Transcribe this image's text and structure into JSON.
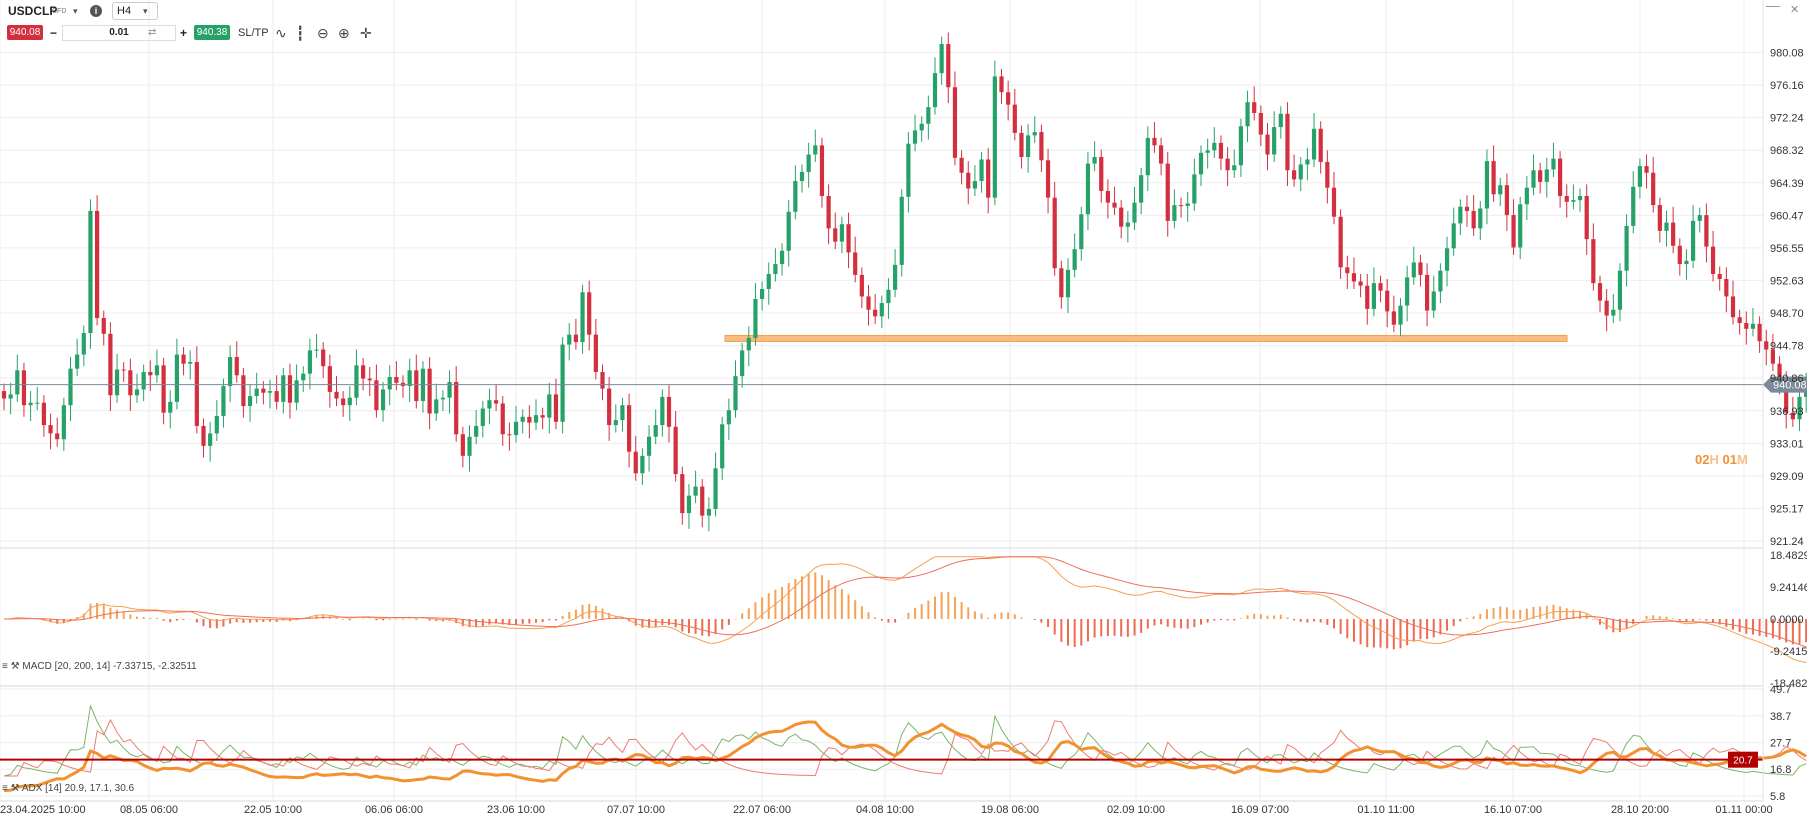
{
  "toolbar": {
    "symbol": "USDCLP",
    "instrument_type": "CFD",
    "timeframe": "H4",
    "sell_price": "940.08",
    "quantity": "0.01",
    "buy_price": "940.38",
    "sltp_label": "SL/TP",
    "icons": [
      "chevron-down-icon",
      "info-icon",
      "minus-icon",
      "plus-icon",
      "swap-icon",
      "line-chart-icon",
      "candles-icon",
      "zoom-out-icon",
      "zoom-in-icon",
      "crosshair-icon",
      "close-icon"
    ]
  },
  "countdown": {
    "hours": "02",
    "h_label": "H",
    "minutes": "01",
    "m_label": "M"
  },
  "colors": {
    "up": "#26a269",
    "down": "#d32f3f",
    "zone": "#f9b26b",
    "macd": "#f29130",
    "adx_level": "#b00000",
    "grid": "#eeeeee"
  },
  "chart_data": [
    {
      "type": "candlestick",
      "title": "USDCLP",
      "ylim": [
        921.24,
        984.0
      ],
      "y_ticks": [
        "980.08",
        "976.16",
        "972.24",
        "968.32",
        "964.39",
        "960.47",
        "956.55",
        "952.63",
        "948.70",
        "944.78",
        "940.86",
        "936.93",
        "933.01",
        "929.09",
        "925.17",
        "921.24"
      ],
      "x_ticks": [
        "23.04.2025 10:00",
        "08.05 06:00",
        "22.05 10:00",
        "06.06 06:00",
        "23.06 10:00",
        "07.07 10:00",
        "22.07 06:00",
        "04.08 10:00",
        "19.08 06:00",
        "02.09 10:00",
        "16.09 07:00",
        "01.10 11:00",
        "16.10 07:00",
        "28.10 20:00",
        "01.11 00:00"
      ],
      "current_price": "940.08",
      "support_zone": [
        945.3,
        946.0
      ],
      "close": [
        938.4,
        938.9,
        941.8,
        937.6,
        937.9,
        937.9,
        935.2,
        934.2,
        933.5,
        937.6,
        942.0,
        943.7,
        946.3,
        961.0,
        948.1,
        946.2,
        938.8,
        941.9,
        941.8,
        938.8,
        939.5,
        941.6,
        941.2,
        942.4,
        936.7,
        938.0,
        943.7,
        942.6,
        942.8,
        935.1,
        932.7,
        934.2,
        936.3,
        939.9,
        943.4,
        941.2,
        937.5,
        938.7,
        939.6,
        939.1,
        939.3,
        938.0,
        941.2,
        937.9,
        940.6,
        941.4,
        944.2,
        944.3,
        942.3,
        939.2,
        938.4,
        937.6,
        938.5,
        942.4,
        940.8,
        940.6,
        937.0,
        939.5,
        941.0,
        940.3,
        939.9,
        941.8,
        938.1,
        942.0,
        936.6,
        938.3,
        938.5,
        940.4,
        934.1,
        931.5,
        933.8,
        935.1,
        937.2,
        938.2,
        937.8,
        934.1,
        934.0,
        935.6,
        936.2,
        935.5,
        936.4,
        936.1,
        938.9,
        935.6,
        944.9,
        946.1,
        945.2,
        951.2,
        946.1,
        941.6,
        939.6,
        935.2,
        935.8,
        937.6,
        932.0,
        929.4,
        931.5,
        933.8,
        935.2,
        938.6,
        935.0,
        929.3,
        924.6,
        926.7,
        927.8,
        924.3,
        925.1,
        930.0,
        935.3,
        937.0,
        941.1,
        944.2,
        945.7,
        950.4,
        951.6,
        953.4,
        954.6,
        956.2,
        960.9,
        964.6,
        965.7,
        967.8,
        968.9,
        962.8,
        958.9,
        957.3,
        959.4,
        956.0,
        953.3,
        950.7,
        949.1,
        948.3,
        949.9,
        951.5,
        954.5,
        962.7,
        969.1,
        970.7,
        971.5,
        973.5,
        977.6,
        981.1,
        975.9,
        967.4,
        965.6,
        963.7,
        964.6,
        967.2,
        962.6,
        977.2,
        975.3,
        973.8,
        970.4,
        967.5,
        970.1,
        970.5,
        967.1,
        962.6,
        954.1,
        950.6,
        953.9,
        956.4,
        960.6,
        966.7,
        967.5,
        963.4,
        962.0,
        961.4,
        959.1,
        959.6,
        962.0,
        965.3,
        969.8,
        968.9,
        966.7,
        959.8,
        961.7,
        961.6,
        961.9,
        965.4,
        968.0,
        968.3,
        969.2,
        967.3,
        965.9,
        966.5,
        971.2,
        974.1,
        972.8,
        970.2,
        967.8,
        971.1,
        972.7,
        965.9,
        964.8,
        966.6,
        967.2,
        970.9,
        966.9,
        963.8,
        960.3,
        954.2,
        953.5,
        952.5,
        952.0,
        949.2,
        952.3,
        951.4,
        948.9,
        947.3,
        949.6,
        953.0,
        954.8,
        953.3,
        949.0,
        951.3,
        953.8,
        956.5,
        959.5,
        961.5,
        961.0,
        958.9,
        961.3,
        967.0,
        963.0,
        964.1,
        960.5,
        956.6,
        961.8,
        963.8,
        965.9,
        964.5,
        966.0,
        967.3,
        962.8,
        962.1,
        962.3,
        962.8,
        957.6,
        952.3,
        950.2,
        948.4,
        949.1,
        953.8,
        959.2,
        963.9,
        966.4,
        965.6,
        961.7,
        958.6,
        959.6,
        956.8,
        954.6,
        955.0,
        959.8,
        960.5,
        956.7,
        953.4,
        952.8,
        950.7,
        948.2,
        947.5,
        946.8,
        947.4,
        945.3,
        944.3,
        942.6,
        940.3,
        936.7,
        935.9,
        938.6,
        940.1
      ]
    },
    {
      "type": "macd",
      "label": "MACD [20, 200, 14] -7.33715, -2.32511",
      "ylim": [
        -18.4829,
        18.48291
      ],
      "y_ticks": [
        "18.48291",
        "9.24146",
        "0.0000",
        "-9.2415",
        "-18.4829"
      ]
    },
    {
      "type": "adx",
      "label": "ADX [14] 20.9, 17.1, 30.6",
      "ylim": [
        5.8,
        49.7
      ],
      "y_ticks": [
        "49.7",
        "38.7",
        "27.7",
        "16.8",
        "5.8"
      ],
      "level": 20.7,
      "level_label": "20.7"
    }
  ]
}
